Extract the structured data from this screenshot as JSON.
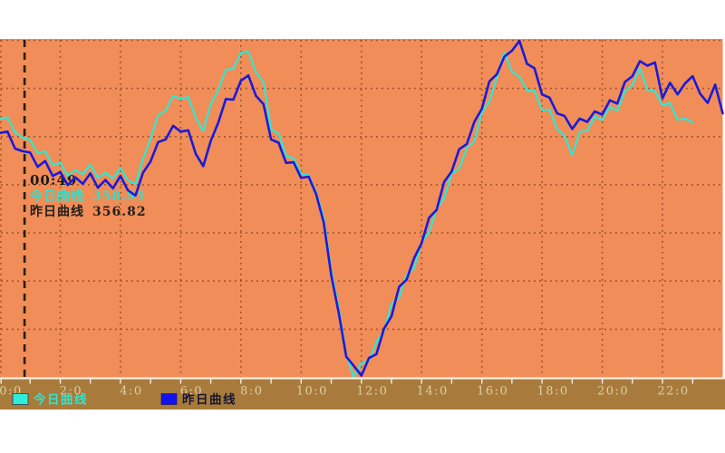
{
  "page": {
    "background": "#FFFFFF"
  },
  "chart_data": {
    "type": "line",
    "title": "",
    "x_axis": {
      "tick_labels": [
        "0:0",
        "2:0",
        "4:0",
        "6:0",
        "8:0",
        "10:0",
        "12:0",
        "14:0",
        "16:0",
        "18:0",
        "20:0",
        "22:0"
      ],
      "hours_range": [
        0,
        24
      ],
      "grid_every_hours": 2,
      "minor_tick_every_hours": 1
    },
    "y_axis": {
      "tick_labels_visible": false,
      "value_range_est": [
        322,
        374
      ],
      "gridline_rows": 7
    },
    "grid": {
      "style": "dotted",
      "color": "#9C5128"
    },
    "cursor": {
      "hour": 0.8167,
      "style": "dashed-vertical",
      "color": "#2A1C10"
    },
    "tooltip": {
      "time": "00:49",
      "today_label": "今日曲线",
      "today_value": "358.91",
      "yesterday_label": "昨日曲线",
      "yesterday_value": "356.82"
    },
    "series": [
      {
        "name": "今日曲线",
        "color": "#2FE8D2",
        "start_hour": 0,
        "interval_minutes": 15,
        "values": [
          361.8,
          362.0,
          359.7,
          358.9,
          358.5,
          356.5,
          356.8,
          354.7,
          355.0,
          353.0,
          353.9,
          353.3,
          354.8,
          352.7,
          353.5,
          352.6,
          354.2,
          352.3,
          351.8,
          355.6,
          358.7,
          362.3,
          363.0,
          365.3,
          364.8,
          365.1,
          361.9,
          359.9,
          364.0,
          366.2,
          369.3,
          369.4,
          371.9,
          372.1,
          368.9,
          367.4,
          360.2,
          359.5,
          356.1,
          355.7,
          353.3,
          353.1,
          350.5,
          346.6,
          338.5,
          332.7,
          325.6,
          322.2,
          324.3,
          324.7,
          327.6,
          329.2,
          333.4,
          334.3,
          337.9,
          338.9,
          342.8,
          344.4,
          348.0,
          349.6,
          353.4,
          354.1,
          357.3,
          358.3,
          362.8,
          364.4,
          368.1,
          371.9,
          369.0,
          368.2,
          366.1,
          366.0,
          363.1,
          363.2,
          360.2,
          359.1,
          356.2,
          359.8,
          359.9,
          362.1,
          361.6,
          363.6,
          363.0,
          366.0,
          366.9,
          369.5,
          366.2,
          366.0,
          363.8,
          364.2,
          361.6,
          361.8,
          361.2
        ]
      },
      {
        "name": "昨日曲线",
        "color": "#1B1BD8",
        "start_hour": 0,
        "interval_minutes": 15,
        "values": [
          359.6,
          359.8,
          357.2,
          356.8,
          356.6,
          354.4,
          355.3,
          353.0,
          353.6,
          351.6,
          352.8,
          351.8,
          353.4,
          351.2,
          352.4,
          351.1,
          353.0,
          350.8,
          350.0,
          353.5,
          355.2,
          358.2,
          358.6,
          360.7,
          359.8,
          360.0,
          356.4,
          354.5,
          358.4,
          361.2,
          364.8,
          364.7,
          367.6,
          368.4,
          365.3,
          364.0,
          358.6,
          358.1,
          355.0,
          355.1,
          352.7,
          352.9,
          350.2,
          345.9,
          337.8,
          332.0,
          325.3,
          323.9,
          322.4,
          325.1,
          325.7,
          329.6,
          331.5,
          336.0,
          337.1,
          340.4,
          342.7,
          346.6,
          347.8,
          352.1,
          353.7,
          357.1,
          357.9,
          361.3,
          363.3,
          367.5,
          368.6,
          371.3,
          372.2,
          373.7,
          370.2,
          369.5,
          365.5,
          365.0,
          362.6,
          362.2,
          360.2,
          361.8,
          361.3,
          362.9,
          362.4,
          364.6,
          364.1,
          367.4,
          368.3,
          370.6,
          369.9,
          370.4,
          364.9,
          367.3,
          365.5,
          367.2,
          368.3,
          365.6,
          364.2,
          367.0,
          362.6
        ]
      }
    ],
    "legend": {
      "position": "bottom-left",
      "items": [
        {
          "label": "今日曲线",
          "swatch_color": "#2BEFD9",
          "text_color": "#35E2C8"
        },
        {
          "label": "昨日曲线",
          "swatch_color": "#1212F0",
          "text_color": "#15152E"
        }
      ]
    },
    "colors": {
      "plot_background": "#F08D58",
      "axis_band": "#A87B3C",
      "axis_line": "#F5EFDF",
      "tick_label": "#DACFA2",
      "page_background": "#FFFFFF"
    }
  }
}
